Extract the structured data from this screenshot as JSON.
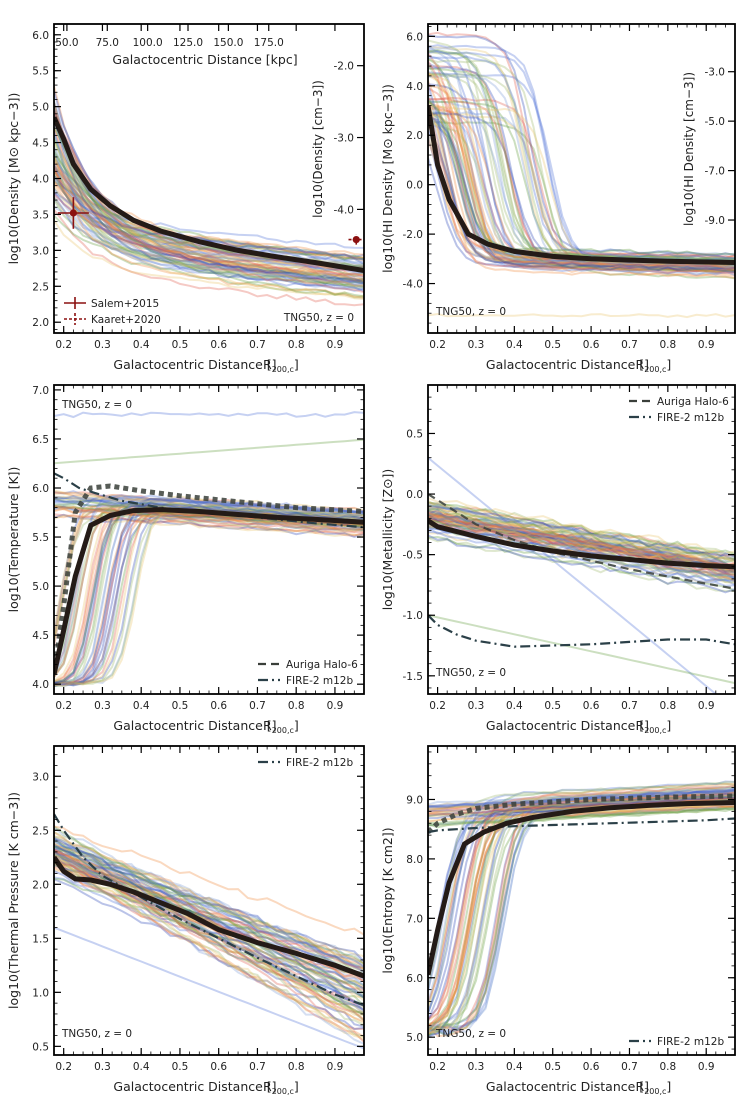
{
  "figure": {
    "common_xlabel": "Galactocentric Distance [R200,c]",
    "x_ticks": [
      "0.2",
      "0.3",
      "0.4",
      "0.5",
      "0.6",
      "0.7",
      "0.8",
      "0.9"
    ],
    "x_tick_values": [
      0.2,
      0.3,
      0.4,
      0.5,
      0.6,
      0.7,
      0.8,
      0.9
    ],
    "x_range": [
      0.175,
      0.975
    ],
    "sim_label": "TNG50, z = 0",
    "ensemble_colors": [
      "#4f6fd6",
      "#5f9a3a",
      "#f08a3a",
      "#e9c36a",
      "#e05a4a",
      "#2845b8",
      "#7b9bd8",
      "#9ab86a"
    ],
    "median_color": "#241b17",
    "auriga_color": "#3a3f3a",
    "fire_color": "#2b4048"
  },
  "chart_data": [
    {
      "type": "line",
      "id": "density",
      "ylabel": "log10(Density [M⊙ kpc−3])",
      "ylim": [
        1.85,
        6.15
      ],
      "y_ticks": [
        "2.0",
        "2.5",
        "3.0",
        "3.5",
        "4.0",
        "4.5",
        "5.0",
        "5.5",
        "6.0"
      ],
      "y_tick_values": [
        2.0,
        2.5,
        3.0,
        3.5,
        4.0,
        4.5,
        5.0,
        5.5,
        6.0
      ],
      "top_axis": {
        "label": "Galactocentric Distance [kpc]",
        "ticks": [
          "50.0",
          "75.0",
          "100.0",
          "125.0",
          "150.0",
          "175.0"
        ],
        "tick_values": [
          50,
          75,
          100,
          125,
          150,
          175
        ],
        "kpc_per_r200": 240
      },
      "right_axis": {
        "label": "log10(Density [cm−3])",
        "ticks": [
          "-2.0",
          "-3.0",
          "-4.0"
        ],
        "tick_values": [
          -2.0,
          -3.0,
          -4.0
        ],
        "offset": 7.57
      },
      "median": {
        "x": [
          0.175,
          0.2,
          0.225,
          0.27,
          0.32,
          0.38,
          0.45,
          0.55,
          0.65,
          0.75,
          0.85,
          0.975
        ],
        "y": [
          4.85,
          4.55,
          4.2,
          3.85,
          3.62,
          3.42,
          3.27,
          3.12,
          3.0,
          2.91,
          2.83,
          2.72
        ]
      },
      "observations": [
        {
          "name": "Salem+2015",
          "x": 0.225,
          "y": 3.52,
          "xerr": 0.04,
          "yerr": 0.22,
          "style": "solid"
        },
        {
          "name": "Kaaret+2020",
          "x": 0.955,
          "y": 3.15,
          "xerr": 0.02,
          "yerr": 0.07,
          "style": "dashed"
        }
      ],
      "legend": [
        "Salem+2015",
        "Kaaret+2020"
      ],
      "sim_label_position": "bottom-right"
    },
    {
      "type": "line",
      "id": "hi_density",
      "ylabel": "log10(HI Density [M⊙ kpc−3])",
      "ylim": [
        -6.0,
        6.5
      ],
      "y_ticks": [
        "-4.0",
        "-2.0",
        "0.0",
        "2.0",
        "4.0",
        "6.0"
      ],
      "y_tick_values": [
        -4,
        -2,
        0,
        2,
        4,
        6
      ],
      "right_axis": {
        "label": "log10(HI Density [cm−3])",
        "ticks": [
          "-3.0",
          "-5.0",
          "-7.0",
          "-9.0"
        ],
        "tick_values": [
          -3,
          -5,
          -7,
          -9
        ],
        "offset": 7.57
      },
      "median": {
        "x": [
          0.175,
          0.2,
          0.23,
          0.28,
          0.33,
          0.4,
          0.5,
          0.6,
          0.7,
          0.8,
          0.975
        ],
        "y": [
          3.2,
          0.8,
          -0.6,
          -2.0,
          -2.4,
          -2.7,
          -2.9,
          -3.0,
          -3.05,
          -3.1,
          -3.15
        ]
      },
      "sim_label_position": "bottom-left"
    },
    {
      "type": "line",
      "id": "temperature",
      "ylabel": "log10(Temperature [K])",
      "ylim": [
        3.9,
        7.05
      ],
      "y_ticks": [
        "4.0",
        "4.5",
        "5.0",
        "5.5",
        "6.0",
        "6.5",
        "7.0"
      ],
      "y_tick_values": [
        4.0,
        4.5,
        5.0,
        5.5,
        6.0,
        6.5,
        7.0
      ],
      "median": {
        "x": [
          0.175,
          0.2,
          0.23,
          0.27,
          0.32,
          0.38,
          0.45,
          0.55,
          0.65,
          0.75,
          0.85,
          0.975
        ],
        "y": [
          4.1,
          4.55,
          5.1,
          5.62,
          5.72,
          5.77,
          5.78,
          5.76,
          5.73,
          5.7,
          5.68,
          5.65
        ]
      },
      "auriga": {
        "name": "Auriga Halo-6",
        "x": [
          0.175,
          0.2,
          0.23,
          0.27,
          0.32,
          0.4,
          0.5,
          0.6,
          0.7,
          0.8,
          0.975
        ],
        "y": [
          4.1,
          4.8,
          5.75,
          6.0,
          6.02,
          5.97,
          5.92,
          5.88,
          5.84,
          5.8,
          5.76
        ]
      },
      "fire": {
        "name": "FIRE-2 m12b",
        "x": [
          0.175,
          0.2,
          0.24,
          0.28,
          0.35,
          0.45,
          0.55,
          0.65,
          0.75,
          0.85,
          0.975
        ],
        "y": [
          6.15,
          6.1,
          6.0,
          5.95,
          5.87,
          5.8,
          5.75,
          5.72,
          5.68,
          5.64,
          5.6
        ]
      },
      "legend": [
        "Auriga Halo-6",
        "FIRE-2 m12b"
      ],
      "legend_position": "bottom-right",
      "sim_label_position": "top-left"
    },
    {
      "type": "line",
      "id": "metallicity",
      "ylabel": "log10(Metallicity [Z⊙])",
      "ylim": [
        -1.65,
        0.9
      ],
      "y_ticks": [
        "-1.5",
        "-1.0",
        "-0.5",
        "0.0",
        "0.5"
      ],
      "y_tick_values": [
        -1.5,
        -1.0,
        -0.5,
        0.0,
        0.5
      ],
      "median": {
        "x": [
          0.175,
          0.2,
          0.25,
          0.3,
          0.4,
          0.5,
          0.6,
          0.7,
          0.8,
          0.9,
          0.975
        ],
        "y": [
          -0.22,
          -0.27,
          -0.31,
          -0.35,
          -0.42,
          -0.47,
          -0.51,
          -0.54,
          -0.57,
          -0.59,
          -0.6
        ]
      },
      "auriga": {
        "name": "Auriga Halo-6",
        "x": [
          0.175,
          0.2,
          0.25,
          0.3,
          0.4,
          0.5,
          0.6,
          0.7,
          0.8,
          0.9,
          0.975
        ],
        "y": [
          0.0,
          -0.05,
          -0.15,
          -0.25,
          -0.38,
          -0.48,
          -0.55,
          -0.62,
          -0.68,
          -0.74,
          -0.78
        ]
      },
      "fire": {
        "name": "FIRE-2 m12b",
        "x": [
          0.175,
          0.2,
          0.25,
          0.3,
          0.4,
          0.5,
          0.6,
          0.7,
          0.8,
          0.9,
          0.975
        ],
        "y": [
          -1.0,
          -1.08,
          -1.16,
          -1.21,
          -1.26,
          -1.25,
          -1.24,
          -1.22,
          -1.2,
          -1.2,
          -1.24
        ]
      },
      "legend": [
        "Auriga Halo-6",
        "FIRE-2 m12b"
      ],
      "legend_position": "top-right",
      "sim_label_position": "bottom-left"
    },
    {
      "type": "line",
      "id": "pressure",
      "ylabel": "log10(Thermal Pressure [K cm−3])",
      "ylim": [
        0.42,
        3.28
      ],
      "y_ticks": [
        "0.5",
        "1.0",
        "1.5",
        "2.0",
        "2.5",
        "3.0"
      ],
      "y_tick_values": [
        0.5,
        1.0,
        1.5,
        2.0,
        2.5,
        3.0
      ],
      "median": {
        "x": [
          0.175,
          0.2,
          0.23,
          0.27,
          0.32,
          0.38,
          0.45,
          0.52,
          0.6,
          0.7,
          0.8,
          0.9,
          0.975
        ],
        "y": [
          2.25,
          2.12,
          2.05,
          2.04,
          2.0,
          1.93,
          1.83,
          1.73,
          1.58,
          1.46,
          1.36,
          1.25,
          1.15
        ]
      },
      "fire": {
        "name": "FIRE-2 m12b",
        "x": [
          0.175,
          0.2,
          0.25,
          0.3,
          0.4,
          0.5,
          0.6,
          0.7,
          0.8,
          0.9,
          0.975
        ],
        "y": [
          2.65,
          2.5,
          2.25,
          2.08,
          1.88,
          1.68,
          1.5,
          1.32,
          1.15,
          0.98,
          0.88
        ]
      },
      "legend": [
        "FIRE-2 m12b"
      ],
      "legend_position": "top-right",
      "sim_label_position": "bottom-left"
    },
    {
      "type": "line",
      "id": "entropy",
      "ylabel": "log10(Entropy [K cm2])",
      "ylim": [
        4.7,
        9.9
      ],
      "y_ticks": [
        "5.0",
        "6.0",
        "7.0",
        "8.0",
        "9.0"
      ],
      "y_tick_values": [
        5,
        6,
        7,
        8,
        9
      ],
      "median": {
        "x": [
          0.175,
          0.2,
          0.23,
          0.27,
          0.32,
          0.38,
          0.45,
          0.55,
          0.65,
          0.75,
          0.85,
          0.975
        ],
        "y": [
          6.05,
          6.8,
          7.6,
          8.25,
          8.45,
          8.6,
          8.7,
          8.8,
          8.86,
          8.9,
          8.93,
          8.95
        ]
      },
      "auriga": {
        "name": "Auriga Halo-6",
        "x": [
          0.175,
          0.2,
          0.25,
          0.3,
          0.4,
          0.5,
          0.6,
          0.7,
          0.8,
          0.9,
          0.975
        ],
        "y": [
          8.45,
          8.6,
          8.75,
          8.85,
          8.92,
          8.96,
          9.0,
          9.02,
          9.04,
          9.05,
          9.06
        ]
      },
      "fire": {
        "name": "FIRE-2 m12b",
        "x": [
          0.175,
          0.2,
          0.25,
          0.3,
          0.4,
          0.5,
          0.6,
          0.7,
          0.8,
          0.9,
          0.975
        ],
        "y": [
          8.45,
          8.48,
          8.5,
          8.52,
          8.55,
          8.57,
          8.59,
          8.61,
          8.63,
          8.65,
          8.68
        ]
      },
      "legend": [
        "FIRE-2 m12b"
      ],
      "legend_position": "bottom-right",
      "sim_label_position": "bottom-left"
    }
  ]
}
